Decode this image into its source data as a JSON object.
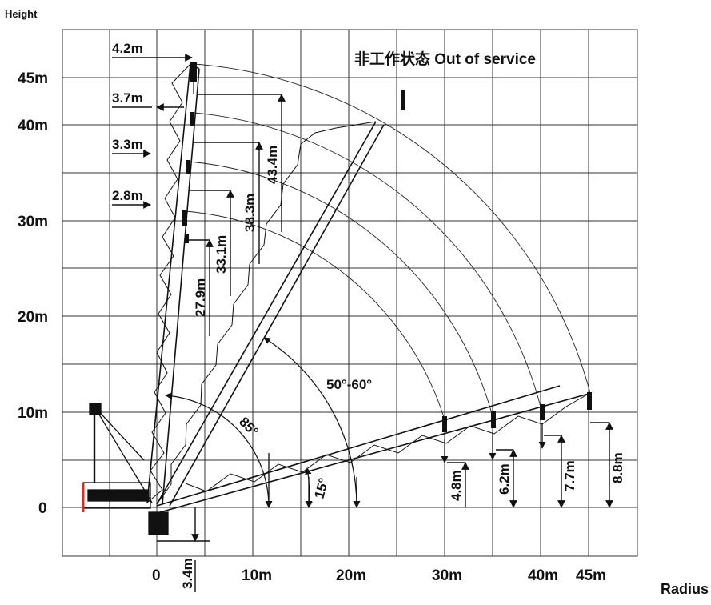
{
  "title": "非工作状态  Out of service",
  "axis": {
    "y_label": "Height",
    "x_label": "Radius",
    "y_ticks": [
      "45m",
      "40m",
      "30m",
      "20m",
      "10m",
      "0"
    ],
    "x_ticks": [
      "0",
      "10m",
      "20m",
      "30m",
      "40m",
      "45m"
    ]
  },
  "heights": {
    "h1": "43.4m",
    "h2": "38.3m",
    "h3": "33.1m",
    "h4": "27.9m",
    "h5": "8.8m",
    "h6": "7.7m",
    "h7": "6.2m",
    "h8": "4.8m",
    "h9": "3.4m"
  },
  "offsets": {
    "o1": "4.2m",
    "o2": "3.7m",
    "o3": "3.3m",
    "o4": "2.8m"
  },
  "angles": {
    "a1": "85°",
    "a2": "50°-60°",
    "a3": "15°"
  },
  "colors": {
    "line": "#1a1a1a",
    "grid": "#333333",
    "accent": "#c0392b"
  }
}
